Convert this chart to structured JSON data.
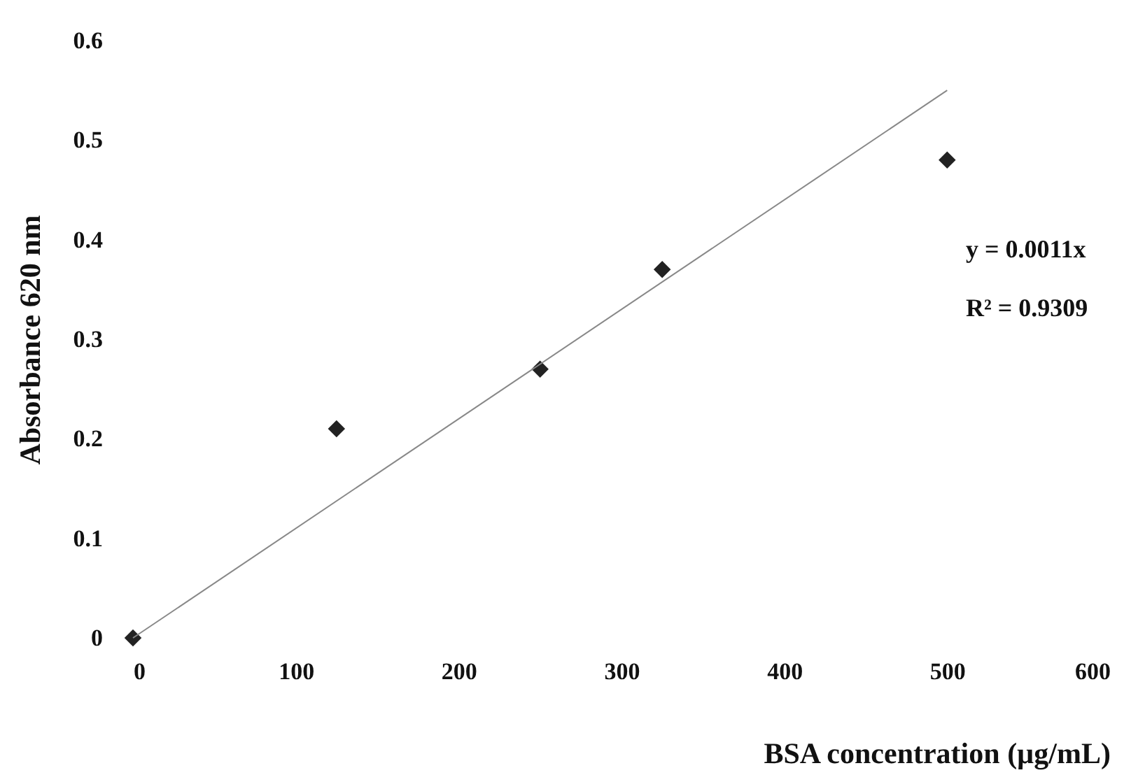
{
  "chart_data": {
    "type": "scatter",
    "xlabel": "BSA concentration (µg/mL)",
    "ylabel": "Absorbance 620 nm",
    "series": [
      {
        "color": "#222222",
        "marker": "diamond",
        "x": [
          0,
          125,
          250,
          325,
          500
        ],
        "values": [
          0,
          0.21,
          0.27,
          0.37,
          0.48
        ]
      },
      {
        "type": "line",
        "color": "#888888",
        "x": [
          0,
          500
        ],
        "values": [
          0,
          0.55
        ]
      }
    ],
    "annotations": [
      "y = 0.0011x",
      "R² = 0.9309"
    ],
    "xlim": [
      0,
      600
    ],
    "xticks": [
      0,
      100,
      200,
      300,
      400,
      500,
      600
    ],
    "ylim": [
      0,
      0.6
    ],
    "yticks": [
      0,
      0.1,
      0.2,
      0.3,
      0.4,
      0.5,
      0.6
    ],
    "grid": false
  }
}
